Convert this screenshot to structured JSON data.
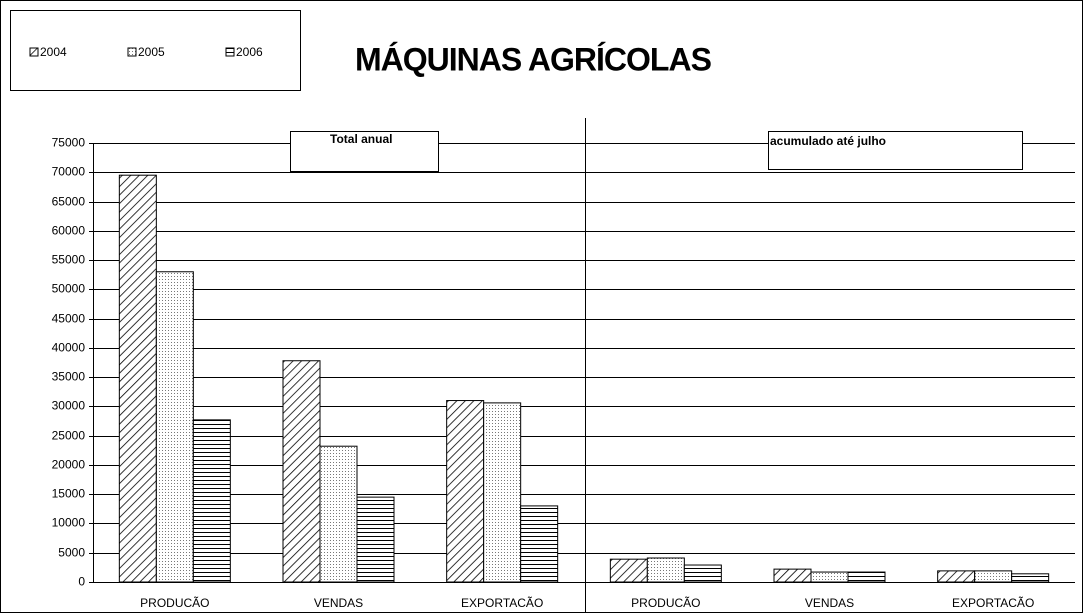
{
  "chart_data": {
    "type": "bar",
    "title": "MÁQUINAS AGRÍCOLAS",
    "annotations": [
      "Total anual",
      "acumulado até julho"
    ],
    "categories": [
      "PRODUCÃO",
      "VENDAS",
      "EXPORTACÃO",
      "PRODUCÃO",
      "VENDAS",
      "EXPORTACÃO"
    ],
    "series": [
      {
        "name": "2004",
        "color": "#000000",
        "values": [
          69500,
          37800,
          31000,
          3900,
          2200,
          1900
        ]
      },
      {
        "name": "2005",
        "color": "#000000",
        "values": [
          53000,
          23200,
          30600,
          4100,
          1700,
          1900
        ]
      },
      {
        "name": "2006",
        "color": "#000000",
        "values": [
          27700,
          14500,
          13000,
          2900,
          1700,
          1400
        ]
      }
    ],
    "ylim": [
      0,
      75000
    ],
    "yticks": [
      0,
      5000,
      10000,
      15000,
      20000,
      25000,
      30000,
      35000,
      40000,
      45000,
      50000,
      55000,
      60000,
      65000,
      70000,
      75000
    ],
    "grid": true
  }
}
